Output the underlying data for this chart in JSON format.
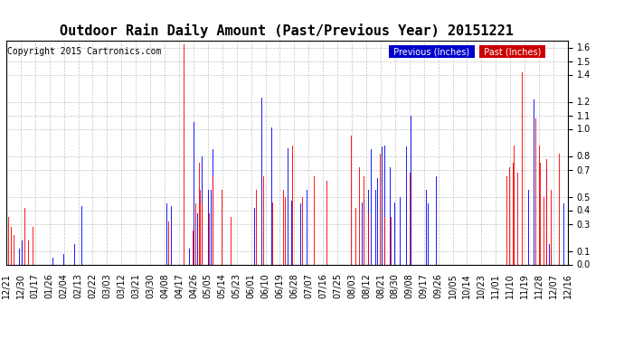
{
  "title": "Outdoor Rain Daily Amount (Past/Previous Year) 20151221",
  "copyright": "Copyright 2015 Cartronics.com",
  "ylim": [
    0.0,
    1.65
  ],
  "yticks": [
    0.0,
    0.1,
    0.3,
    0.4,
    0.5,
    0.7,
    0.8,
    1.0,
    1.1,
    1.2,
    1.4,
    1.5,
    1.6
  ],
  "legend_prev_label": "Previous (Inches)",
  "legend_past_label": "Past (Inches)",
  "legend_prev_bg": "#0000CC",
  "legend_past_bg": "#CC0000",
  "line_prev_color": "#0000FF",
  "line_past_color": "#FF0000",
  "background_color": "#ffffff",
  "grid_color": "#aaaaaa",
  "title_fontsize": 11,
  "copyright_fontsize": 7,
  "tick_fontsize": 7,
  "x_labels": [
    "12/21",
    "12/30",
    "01/17",
    "01/26",
    "02/04",
    "02/13",
    "02/22",
    "03/03",
    "03/12",
    "03/21",
    "03/30",
    "04/08",
    "04/17",
    "04/26",
    "05/05",
    "05/14",
    "05/23",
    "06/01",
    "06/10",
    "06/19",
    "06/28",
    "07/07",
    "07/16",
    "07/25",
    "08/03",
    "08/12",
    "08/21",
    "08/30",
    "09/08",
    "09/17",
    "09/26",
    "10/05",
    "10/14",
    "10/23",
    "11/01",
    "11/10",
    "11/19",
    "11/28",
    "12/07",
    "12/16"
  ],
  "num_points": 366,
  "prev_rain": [
    0.37,
    0.0,
    0.0,
    0.0,
    0.0,
    0.0,
    0.0,
    0.0,
    0.12,
    0.0,
    0.18,
    0.0,
    0.0,
    0.0,
    0.0,
    0.0,
    0.0,
    0.0,
    0.0,
    0.0,
    0.0,
    0.0,
    0.0,
    0.0,
    0.0,
    0.0,
    0.0,
    0.0,
    0.0,
    0.0,
    0.05,
    0.0,
    0.0,
    0.0,
    0.0,
    0.0,
    0.0,
    0.08,
    0.0,
    0.0,
    0.0,
    0.0,
    0.0,
    0.0,
    0.15,
    0.0,
    0.0,
    0.0,
    0.0,
    0.43,
    0.0,
    0.0,
    0.0,
    0.0,
    0.0,
    0.0,
    0.0,
    0.0,
    0.0,
    0.0,
    0.0,
    0.0,
    0.0,
    0.0,
    0.0,
    0.0,
    0.0,
    0.0,
    0.0,
    0.0,
    0.0,
    0.0,
    0.0,
    0.0,
    0.0,
    0.0,
    0.0,
    0.0,
    0.0,
    0.0,
    0.0,
    0.0,
    0.0,
    0.0,
    0.0,
    0.0,
    0.0,
    0.0,
    0.0,
    0.0,
    0.0,
    0.0,
    0.0,
    0.0,
    0.0,
    0.0,
    0.0,
    0.0,
    0.0,
    0.0,
    0.0,
    0.0,
    0.0,
    0.0,
    0.45,
    0.0,
    0.0,
    0.43,
    0.0,
    0.0,
    0.0,
    0.0,
    0.0,
    0.0,
    0.0,
    0.0,
    0.0,
    0.0,
    0.0,
    0.12,
    0.0,
    0.0,
    1.05,
    0.0,
    0.38,
    0.0,
    0.0,
    0.8,
    0.0,
    0.0,
    0.0,
    0.55,
    0.0,
    0.55,
    0.85,
    0.0,
    0.0,
    0.0,
    0.0,
    0.0,
    0.0,
    0.0,
    0.0,
    0.0,
    0.0,
    0.0,
    0.0,
    0.0,
    0.0,
    0.0,
    0.0,
    0.0,
    0.0,
    0.0,
    0.0,
    0.0,
    0.0,
    0.0,
    0.0,
    0.0,
    0.0,
    0.42,
    0.0,
    0.0,
    0.0,
    0.0,
    1.23,
    0.0,
    0.0,
    0.0,
    0.0,
    0.0,
    1.01,
    0.0,
    0.0,
    0.0,
    0.0,
    0.0,
    0.0,
    0.0,
    0.0,
    0.0,
    0.0,
    0.86,
    0.0,
    0.47,
    0.0,
    0.0,
    0.0,
    0.0,
    0.0,
    0.45,
    0.0,
    0.0,
    0.0,
    0.55,
    0.0,
    0.0,
    0.0,
    0.0,
    0.0,
    0.0,
    0.0,
    0.0,
    0.0,
    0.0,
    0.0,
    0.0,
    0.0,
    0.0,
    0.0,
    0.0,
    0.0,
    0.0,
    0.0,
    0.0,
    0.0,
    0.0,
    0.0,
    0.0,
    0.0,
    0.0,
    0.0,
    0.0,
    0.0,
    0.0,
    0.0,
    0.0,
    0.0,
    0.0,
    0.0,
    0.46,
    0.48,
    0.0,
    0.0,
    0.55,
    0.0,
    0.85,
    0.0,
    0.0,
    0.55,
    0.64,
    0.0,
    0.0,
    0.87,
    0.0,
    0.88,
    0.0,
    0.0,
    0.72,
    0.0,
    0.0,
    0.46,
    0.0,
    0.0,
    0.0,
    0.5,
    0.0,
    0.0,
    0.0,
    0.87,
    0.0,
    0.0,
    1.1,
    0.0,
    0.0,
    0.0,
    0.0,
    0.0,
    0.0,
    0.0,
    0.0,
    0.0,
    0.55,
    0.45,
    0.0,
    0.0,
    0.0,
    0.0,
    0.65,
    0.0,
    0.0,
    0.0,
    0.0,
    0.0,
    0.0,
    0.0,
    0.0,
    0.0,
    0.0,
    0.0,
    0.0,
    0.0,
    0.0,
    0.0,
    0.0,
    0.0,
    0.0,
    0.0,
    0.0,
    0.0,
    0.0,
    0.0,
    0.0,
    0.0,
    0.0,
    0.0,
    0.0,
    0.0,
    0.0,
    0.0,
    0.0,
    0.0,
    0.0,
    0.0,
    0.0,
    0.0,
    0.0,
    0.0,
    0.0,
    0.0,
    0.0,
    0.0,
    0.0,
    0.0,
    0.0,
    0.0,
    0.0,
    0.0,
    0.0,
    0.0,
    0.0,
    0.0,
    0.0,
    0.0,
    0.0,
    0.0,
    0.0,
    0.0,
    0.55,
    0.0,
    0.0,
    0.0,
    1.22,
    0.0,
    0.0,
    0.0,
    0.0,
    0.0,
    0.0,
    0.0,
    0.72,
    0.0,
    0.15,
    0.12,
    0.0,
    0.0,
    0.0,
    0.0,
    0.0,
    0.0,
    0.0,
    0.45,
    0.0,
    0.0
  ],
  "past_rain": [
    0.0,
    0.35,
    0.0,
    0.28,
    0.0,
    0.22,
    0.0,
    0.0,
    0.0,
    0.0,
    0.0,
    0.0,
    0.42,
    0.0,
    0.18,
    0.0,
    0.0,
    0.28,
    0.0,
    0.0,
    0.0,
    0.0,
    0.0,
    0.0,
    0.0,
    0.0,
    0.0,
    0.0,
    0.0,
    0.0,
    0.0,
    0.0,
    0.0,
    0.0,
    0.0,
    0.0,
    0.0,
    0.0,
    0.0,
    0.0,
    0.0,
    0.0,
    0.0,
    0.0,
    0.0,
    0.0,
    0.0,
    0.0,
    0.0,
    0.0,
    0.0,
    0.0,
    0.0,
    0.0,
    0.0,
    0.0,
    0.0,
    0.0,
    0.0,
    0.0,
    0.0,
    0.0,
    0.0,
    0.0,
    0.0,
    0.0,
    0.0,
    0.0,
    0.0,
    0.0,
    0.0,
    0.0,
    0.0,
    0.0,
    0.0,
    0.0,
    0.0,
    0.0,
    0.0,
    0.0,
    0.0,
    0.0,
    0.0,
    0.0,
    0.0,
    0.0,
    0.0,
    0.0,
    0.0,
    0.0,
    0.0,
    0.0,
    0.0,
    0.0,
    0.0,
    0.0,
    0.0,
    0.0,
    0.0,
    0.0,
    0.0,
    0.0,
    0.0,
    0.0,
    0.0,
    0.32,
    0.0,
    0.0,
    0.0,
    0.0,
    0.0,
    0.0,
    0.0,
    0.0,
    0.0,
    1.62,
    0.0,
    0.0,
    0.0,
    0.0,
    0.0,
    0.25,
    0.0,
    0.45,
    0.0,
    0.75,
    0.55,
    0.45,
    0.0,
    0.0,
    0.0,
    0.0,
    0.38,
    0.0,
    0.65,
    0.0,
    0.0,
    0.0,
    0.0,
    0.0,
    0.55,
    0.0,
    0.0,
    0.0,
    0.0,
    0.0,
    0.35,
    0.0,
    0.0,
    0.0,
    0.0,
    0.0,
    0.0,
    0.0,
    0.0,
    0.0,
    0.0,
    0.0,
    0.0,
    0.0,
    0.0,
    0.0,
    0.55,
    0.0,
    0.0,
    0.0,
    0.0,
    0.65,
    0.0,
    0.0,
    0.0,
    0.0,
    0.0,
    0.46,
    0.0,
    0.0,
    0.0,
    0.0,
    0.0,
    0.0,
    0.55,
    0.5,
    0.0,
    0.0,
    0.0,
    0.0,
    0.88,
    0.0,
    0.0,
    0.0,
    0.0,
    0.0,
    0.5,
    0.0,
    0.0,
    0.0,
    0.0,
    0.0,
    0.0,
    0.0,
    0.65,
    0.0,
    0.0,
    0.0,
    0.0,
    0.0,
    0.0,
    0.0,
    0.62,
    0.0,
    0.0,
    0.0,
    0.0,
    0.0,
    0.0,
    0.0,
    0.0,
    0.0,
    0.0,
    0.0,
    0.0,
    0.0,
    0.0,
    0.0,
    0.95,
    0.0,
    0.0,
    0.42,
    0.0,
    0.72,
    0.0,
    0.0,
    0.65,
    0.0,
    0.0,
    0.38,
    0.0,
    0.0,
    0.0,
    0.0,
    0.0,
    0.0,
    0.0,
    0.82,
    0.0,
    0.0,
    0.35,
    0.0,
    0.0,
    0.0,
    0.35,
    0.0,
    0.0,
    0.0,
    0.0,
    0.0,
    0.0,
    0.0,
    0.0,
    0.0,
    0.0,
    0.0,
    0.68,
    0.0,
    0.0,
    0.0,
    0.0,
    0.0,
    0.0,
    0.0,
    0.0,
    0.0,
    0.0,
    0.0,
    0.0,
    0.0,
    0.0,
    0.0,
    0.0,
    0.0,
    0.0,
    0.0,
    0.0,
    0.0,
    0.0,
    0.0,
    0.0,
    0.0,
    0.0,
    0.0,
    0.0,
    0.0,
    0.0,
    0.0,
    0.0,
    0.0,
    0.0,
    0.0,
    0.0,
    0.0,
    0.0,
    0.0,
    0.0,
    0.0,
    0.0,
    0.0,
    0.0,
    0.0,
    0.0,
    0.0,
    0.0,
    0.0,
    0.0,
    0.0,
    0.0,
    0.0,
    0.0,
    0.0,
    0.0,
    0.0,
    0.0,
    0.0,
    0.0,
    0.0,
    0.0,
    0.65,
    0.0,
    0.72,
    0.0,
    0.75,
    0.88,
    0.0,
    0.68,
    0.0,
    0.0,
    1.42,
    0.0,
    0.0,
    0.0,
    0.0,
    0.0,
    0.0,
    0.0,
    0.0,
    1.08,
    0.0,
    0.88,
    0.75,
    0.0,
    0.5,
    0.0,
    0.78,
    0.0,
    0.0,
    0.55,
    0.0,
    0.0,
    0.0,
    0.0,
    0.82,
    0.0,
    0.0,
    0.0,
    0.0,
    0.0
  ]
}
